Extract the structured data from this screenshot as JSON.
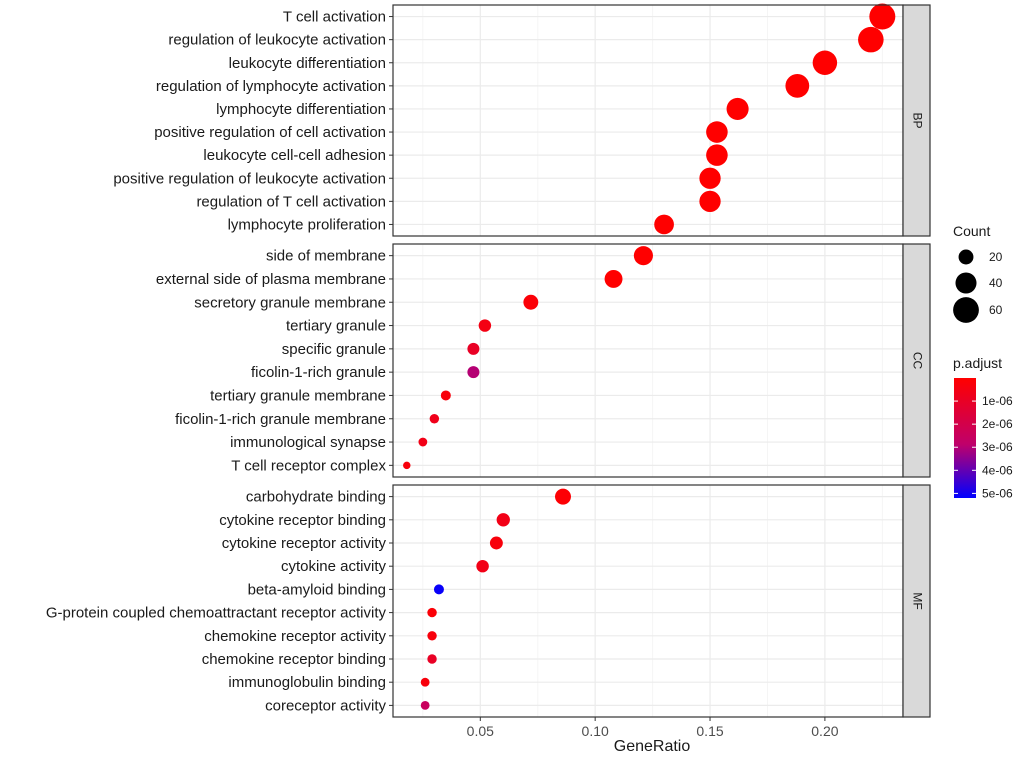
{
  "chart_data": {
    "type": "scatter",
    "subtype": "faceted dot plot (GO enrichment)",
    "xlabel": "GeneRatio",
    "xlim": [
      0.012,
      0.234
    ],
    "xticks": [
      0.05,
      0.1,
      0.15,
      0.2
    ],
    "xtick_labels": [
      "0.05",
      "0.10",
      "0.15",
      "0.20"
    ],
    "grid": true,
    "panels": [
      {
        "name": "BP",
        "terms": [
          {
            "term": "T cell activation",
            "gene_ratio": 0.225,
            "count": 61,
            "p_adjust": 0.0
          },
          {
            "term": "regulation of leukocyte activation",
            "gene_ratio": 0.22,
            "count": 59,
            "p_adjust": 0.0
          },
          {
            "term": "leukocyte differentiation",
            "gene_ratio": 0.2,
            "count": 54,
            "p_adjust": 0.0
          },
          {
            "term": "regulation of lymphocyte activation",
            "gene_ratio": 0.188,
            "count": 51,
            "p_adjust": 0.0
          },
          {
            "term": "lymphocyte differentiation",
            "gene_ratio": 0.162,
            "count": 44,
            "p_adjust": 0.0
          },
          {
            "term": "positive regulation of cell activation",
            "gene_ratio": 0.153,
            "count": 42,
            "p_adjust": 0.0
          },
          {
            "term": "leukocyte cell-cell adhesion",
            "gene_ratio": 0.153,
            "count": 42,
            "p_adjust": 0.0
          },
          {
            "term": "positive regulation of leukocyte activation",
            "gene_ratio": 0.15,
            "count": 41,
            "p_adjust": 0.0
          },
          {
            "term": "regulation of T cell activation",
            "gene_ratio": 0.15,
            "count": 41,
            "p_adjust": 0.0
          },
          {
            "term": "lymphocyte proliferation",
            "gene_ratio": 0.13,
            "count": 35,
            "p_adjust": 0.0
          }
        ]
      },
      {
        "name": "CC",
        "terms": [
          {
            "term": "side of membrane",
            "gene_ratio": 0.121,
            "count": 33,
            "p_adjust": 0.0
          },
          {
            "term": "external side of plasma membrane",
            "gene_ratio": 0.108,
            "count": 29,
            "p_adjust": 0.0
          },
          {
            "term": "secretory granule membrane",
            "gene_ratio": 0.072,
            "count": 20,
            "p_adjust": 2e-07
          },
          {
            "term": "tertiary granule",
            "gene_ratio": 0.052,
            "count": 14,
            "p_adjust": 5e-07
          },
          {
            "term": "specific granule",
            "gene_ratio": 0.047,
            "count": 13,
            "p_adjust": 1e-06
          },
          {
            "term": "ficolin-1-rich granule",
            "gene_ratio": 0.047,
            "count": 13,
            "p_adjust": 3e-06
          },
          {
            "term": "tertiary granule membrane",
            "gene_ratio": 0.035,
            "count": 9,
            "p_adjust": 3e-07
          },
          {
            "term": "ficolin-1-rich granule membrane",
            "gene_ratio": 0.03,
            "count": 8,
            "p_adjust": 7e-07
          },
          {
            "term": "immunological synapse",
            "gene_ratio": 0.025,
            "count": 7,
            "p_adjust": 6e-07
          },
          {
            "term": "T cell receptor complex",
            "gene_ratio": 0.018,
            "count": 5,
            "p_adjust": 3e-07
          }
        ]
      },
      {
        "name": "MF",
        "terms": [
          {
            "term": "carbohydrate binding",
            "gene_ratio": 0.086,
            "count": 23,
            "p_adjust": 1e-07
          },
          {
            "term": "cytokine receptor binding",
            "gene_ratio": 0.06,
            "count": 16,
            "p_adjust": 6e-07
          },
          {
            "term": "cytokine receptor activity",
            "gene_ratio": 0.057,
            "count": 15,
            "p_adjust": 3e-07
          },
          {
            "term": "cytokine activity",
            "gene_ratio": 0.051,
            "count": 14,
            "p_adjust": 6e-07
          },
          {
            "term": "beta-amyloid binding",
            "gene_ratio": 0.032,
            "count": 9,
            "p_adjust": 5.1e-06
          },
          {
            "term": "G-protein coupled chemoattractant receptor activity",
            "gene_ratio": 0.029,
            "count": 8,
            "p_adjust": 2e-07
          },
          {
            "term": "chemokine receptor activity",
            "gene_ratio": 0.029,
            "count": 8,
            "p_adjust": 3e-07
          },
          {
            "term": "chemokine receptor binding",
            "gene_ratio": 0.029,
            "count": 8,
            "p_adjust": 1e-06
          },
          {
            "term": "immunoglobulin binding",
            "gene_ratio": 0.026,
            "count": 7,
            "p_adjust": 3e-07
          },
          {
            "term": "coreceptor activity",
            "gene_ratio": 0.026,
            "count": 7,
            "p_adjust": 2.5e-06
          }
        ]
      }
    ],
    "legend_size": {
      "title": "Count",
      "values": [
        20,
        40,
        60
      ],
      "labels": [
        "20",
        "40",
        "60"
      ]
    },
    "legend_color": {
      "title": "p.adjust",
      "values": [
        1e-06,
        2e-06,
        3e-06,
        4e-06,
        5e-06
      ],
      "labels": [
        "1e-06",
        "2e-06",
        "3e-06",
        "4e-06",
        "5e-06"
      ],
      "range": [
        0,
        5.2e-06
      ],
      "low_color": "#FF0000",
      "high_color": "#0000FF"
    },
    "colors": {
      "panel_border": "#333333",
      "grid_major": "#ebebeb",
      "grid_minor": "#f5f5f5",
      "strip_fill": "#d9d9d9",
      "point_high_sig": "#FF0000",
      "point_low_sig": "#0000FF"
    }
  }
}
